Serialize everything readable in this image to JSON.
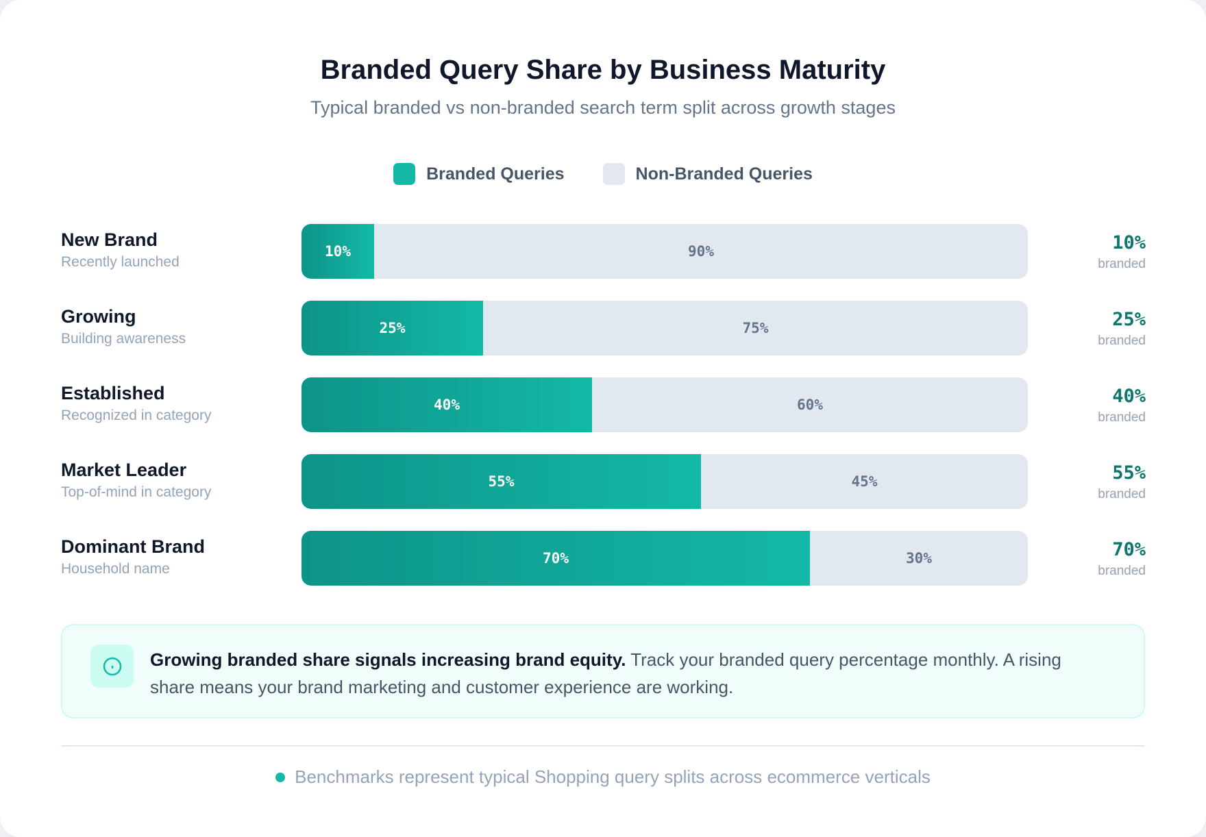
{
  "chart_data": {
    "type": "bar",
    "orientation": "horizontal",
    "stacked": true,
    "percent": true,
    "title": "Branded Query Share by Business Maturity",
    "subtitle": "Typical branded vs non-branded search term split across growth stages",
    "legend_position": "top",
    "categories": [
      "New Brand",
      "Growing",
      "Established",
      "Market Leader",
      "Dominant Brand"
    ],
    "category_subtitles": [
      "Recently launched",
      "Building awareness",
      "Recognized in category",
      "Top-of-mind in category",
      "Household name"
    ],
    "series": [
      {
        "name": "Branded Queries",
        "color": "#14b8a6",
        "values": [
          10,
          25,
          40,
          55,
          70
        ]
      },
      {
        "name": "Non-Branded Queries",
        "color": "#e2e8f0",
        "values": [
          90,
          75,
          60,
          45,
          30
        ]
      }
    ],
    "value_suffix": "%",
    "side_label": "branded",
    "xlim": [
      0,
      100
    ]
  },
  "callout": {
    "icon": "info-circle-icon",
    "bold": "Growing branded share signals increasing brand equity.",
    "text": " Track your branded query percentage monthly. A rising share means your brand marketing and customer experience are working."
  },
  "footer": {
    "text": "Benchmarks represent typical Shopping query splits across ecommerce verticals"
  }
}
